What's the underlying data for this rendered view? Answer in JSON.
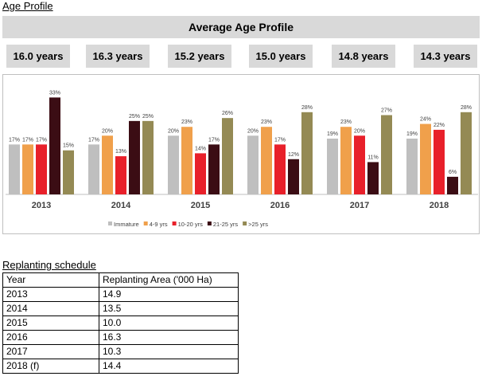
{
  "age_section_title": "Age Profile",
  "banner_title": "Average Age Profile",
  "year_averages": [
    "16.0 years",
    "16.3 years",
    "15.2 years",
    "15.0 years",
    "14.8 years",
    "14.3 years"
  ],
  "chart_data": {
    "type": "bar",
    "categories": [
      "2013",
      "2014",
      "2015",
      "2016",
      "2017",
      "2018"
    ],
    "series": [
      {
        "name": "Immature",
        "color": "#bfbfbf",
        "values": [
          17,
          17,
          20,
          20,
          19,
          19
        ]
      },
      {
        "name": "4-9 yrs",
        "color": "#f0a04b",
        "values": [
          17,
          20,
          23,
          23,
          23,
          24
        ]
      },
      {
        "name": "10-20 yrs",
        "color": "#e8202a",
        "values": [
          17,
          13,
          14,
          17,
          20,
          22
        ]
      },
      {
        "name": "21-25 yrs",
        "color": "#3b0d14",
        "values": [
          33,
          25,
          17,
          12,
          11,
          6
        ]
      },
      {
        "name": ">25 yrs",
        "color": "#948a54",
        "values": [
          15,
          25,
          26,
          28,
          27,
          28
        ]
      }
    ],
    "value_suffix": "%",
    "ylim": [
      0,
      35
    ],
    "grid": false,
    "legend_position": "bottom"
  },
  "replanting": {
    "title": "Replanting schedule",
    "headers": [
      "Year",
      "Replanting Area ('000 Ha)"
    ],
    "rows": [
      [
        "2013",
        "14.9"
      ],
      [
        "2014",
        "13.5"
      ],
      [
        "2015",
        "10.0"
      ],
      [
        "2016",
        "16.3"
      ],
      [
        "2017",
        "10.3"
      ],
      [
        "2018 (f)",
        "14.4"
      ]
    ]
  }
}
